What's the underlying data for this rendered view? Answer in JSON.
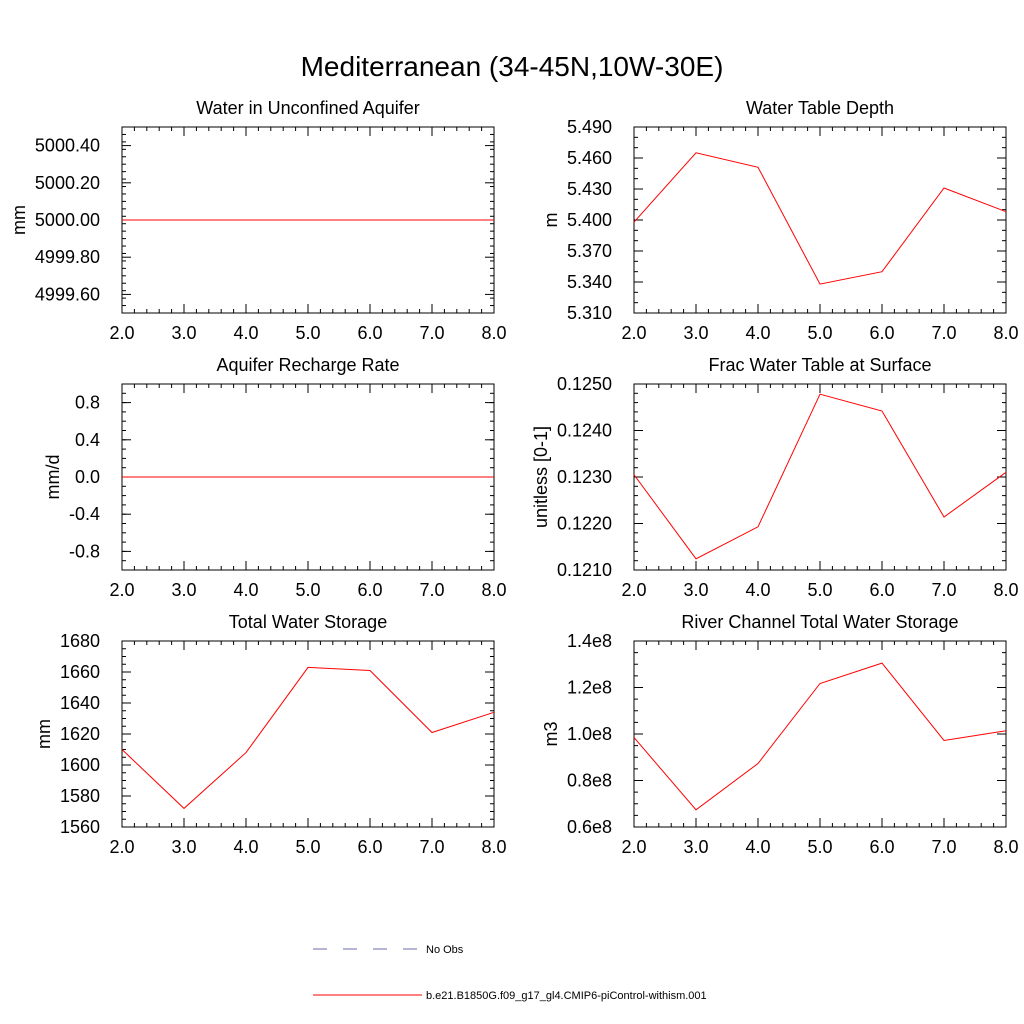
{
  "page_title": "Mediterranean (34-45N,10W-30E)",
  "legend": {
    "items": [
      {
        "label": "No Obs",
        "color": "#6a6aa8",
        "style": "dashed"
      },
      {
        "label": "b.e21.B1850G.f09_g17_gl4.CMIP6-piControl-withism.001",
        "color": "#ff0000",
        "style": "solid"
      }
    ]
  },
  "chart_data": [
    {
      "type": "line",
      "title": "Water in Unconfined Aquifer",
      "xlabel": "",
      "ylabel": "mm",
      "xlim": [
        2.0,
        8.0
      ],
      "ylim": [
        4999.5,
        5000.5
      ],
      "xticks": [
        2.0,
        3.0,
        4.0,
        5.0,
        6.0,
        7.0,
        8.0
      ],
      "xtick_labels": [
        "2.0",
        "3.0",
        "4.0",
        "5.0",
        "6.0",
        "7.0",
        "8.0"
      ],
      "yticks": [
        4999.6,
        4999.8,
        5000.0,
        5000.2,
        5000.4
      ],
      "ytick_labels": [
        "4999.60",
        "4999.80",
        "5000.00",
        "5000.20",
        "5000.40"
      ],
      "yminor_step": 0.04,
      "series": [
        {
          "name": "b.e21.B1850G.f09_g17_gl4.CMIP6-piControl-withism.001",
          "color": "#ff0000",
          "x": [
            2,
            3,
            4,
            5,
            6,
            7,
            8
          ],
          "values": [
            5000.0,
            5000.0,
            5000.0,
            5000.0,
            5000.0,
            5000.0,
            5000.0
          ]
        }
      ]
    },
    {
      "type": "line",
      "title": "Water Table Depth",
      "xlabel": "",
      "ylabel": "m",
      "xlim": [
        2.0,
        8.0
      ],
      "ylim": [
        5.31,
        5.49
      ],
      "xticks": [
        2.0,
        3.0,
        4.0,
        5.0,
        6.0,
        7.0,
        8.0
      ],
      "xtick_labels": [
        "2.0",
        "3.0",
        "4.0",
        "5.0",
        "6.0",
        "7.0",
        "8.0"
      ],
      "yticks": [
        5.31,
        5.34,
        5.37,
        5.4,
        5.43,
        5.46,
        5.49
      ],
      "ytick_labels": [
        "5.310",
        "5.340",
        "5.370",
        "5.400",
        "5.430",
        "5.460",
        "5.490"
      ],
      "yminor_step": 0.01,
      "series": [
        {
          "name": "b.e21.B1850G.f09_g17_gl4.CMIP6-piControl-withism.001",
          "color": "#ff0000",
          "x": [
            2,
            3,
            4,
            5,
            6,
            7,
            8
          ],
          "values": [
            5.398,
            5.465,
            5.451,
            5.338,
            5.35,
            5.431,
            5.408
          ]
        }
      ]
    },
    {
      "type": "line",
      "title": "Aquifer Recharge Rate",
      "xlabel": "",
      "ylabel": "mm/d",
      "xlim": [
        2.0,
        8.0
      ],
      "ylim": [
        -1.0,
        1.0
      ],
      "xticks": [
        2.0,
        3.0,
        4.0,
        5.0,
        6.0,
        7.0,
        8.0
      ],
      "xtick_labels": [
        "2.0",
        "3.0",
        "4.0",
        "5.0",
        "6.0",
        "7.0",
        "8.0"
      ],
      "yticks": [
        -0.8,
        -0.4,
        0.0,
        0.4,
        0.8
      ],
      "ytick_labels": [
        "-0.8",
        "-0.4",
        "0.0",
        "0.4",
        "0.8"
      ],
      "yminor_step": 0.1,
      "series": [
        {
          "name": "b.e21.B1850G.f09_g17_gl4.CMIP6-piControl-withism.001",
          "color": "#ff0000",
          "x": [
            2,
            3,
            4,
            5,
            6,
            7,
            8
          ],
          "values": [
            0.0,
            0.0,
            0.0,
            0.0,
            0.0,
            0.0,
            0.0
          ]
        }
      ]
    },
    {
      "type": "line",
      "title": "Frac Water Table at Surface",
      "xlabel": "",
      "ylabel": "unitless [0-1]",
      "xlim": [
        2.0,
        8.0
      ],
      "ylim": [
        0.121,
        0.125
      ],
      "xticks": [
        2.0,
        3.0,
        4.0,
        5.0,
        6.0,
        7.0,
        8.0
      ],
      "xtick_labels": [
        "2.0",
        "3.0",
        "4.0",
        "5.0",
        "6.0",
        "7.0",
        "8.0"
      ],
      "yticks": [
        0.121,
        0.122,
        0.123,
        0.124,
        0.125
      ],
      "ytick_labels": [
        "0.1210",
        "0.1220",
        "0.1230",
        "0.1240",
        "0.1250"
      ],
      "yminor_step": 0.0002,
      "series": [
        {
          "name": "b.e21.B1850G.f09_g17_gl4.CMIP6-piControl-withism.001",
          "color": "#ff0000",
          "x": [
            2,
            3,
            4,
            5,
            6,
            7,
            8
          ],
          "values": [
            0.12305,
            0.12124,
            0.12193,
            0.12478,
            0.12442,
            0.12214,
            0.1231
          ]
        }
      ]
    },
    {
      "type": "line",
      "title": "Total Water Storage",
      "xlabel": "",
      "ylabel": "mm",
      "xlim": [
        2.0,
        8.0
      ],
      "ylim": [
        1560,
        1680
      ],
      "xticks": [
        2.0,
        3.0,
        4.0,
        5.0,
        6.0,
        7.0,
        8.0
      ],
      "xtick_labels": [
        "2.0",
        "3.0",
        "4.0",
        "5.0",
        "6.0",
        "7.0",
        "8.0"
      ],
      "yticks": [
        1560,
        1580,
        1600,
        1620,
        1640,
        1660,
        1680
      ],
      "ytick_labels": [
        "1560",
        "1580",
        "1600",
        "1620",
        "1640",
        "1660",
        "1680"
      ],
      "yminor_step": 5,
      "series": [
        {
          "name": "b.e21.B1850G.f09_g17_gl4.CMIP6-piControl-withism.001",
          "color": "#ff0000",
          "x": [
            2,
            3,
            4,
            5,
            6,
            7,
            8
          ],
          "values": [
            1610,
            1572,
            1608,
            1663,
            1661,
            1621,
            1634
          ]
        }
      ]
    },
    {
      "type": "line",
      "title": "River Channel Total Water Storage",
      "xlabel": "",
      "ylabel": "m3",
      "xlim": [
        2.0,
        8.0
      ],
      "ylim": [
        0.6,
        1.4
      ],
      "xticks": [
        2.0,
        3.0,
        4.0,
        5.0,
        6.0,
        7.0,
        8.0
      ],
      "xtick_labels": [
        "2.0",
        "3.0",
        "4.0",
        "5.0",
        "6.0",
        "7.0",
        "8.0"
      ],
      "yticks": [
        0.6,
        0.8,
        1.0,
        1.2,
        1.4
      ],
      "ytick_labels": [
        "0.6e8",
        "0.8e8",
        "1.0e8",
        "1.2e8",
        "1.4e8"
      ],
      "yminor_step": 0.05,
      "series": [
        {
          "name": "b.e21.B1850G.f09_g17_gl4.CMIP6-piControl-withism.001",
          "color": "#ff0000",
          "x": [
            2,
            3,
            4,
            5,
            6,
            7,
            8
          ],
          "values": [
            0.985,
            0.674,
            0.873,
            1.217,
            1.305,
            0.972,
            1.014
          ]
        }
      ]
    }
  ]
}
